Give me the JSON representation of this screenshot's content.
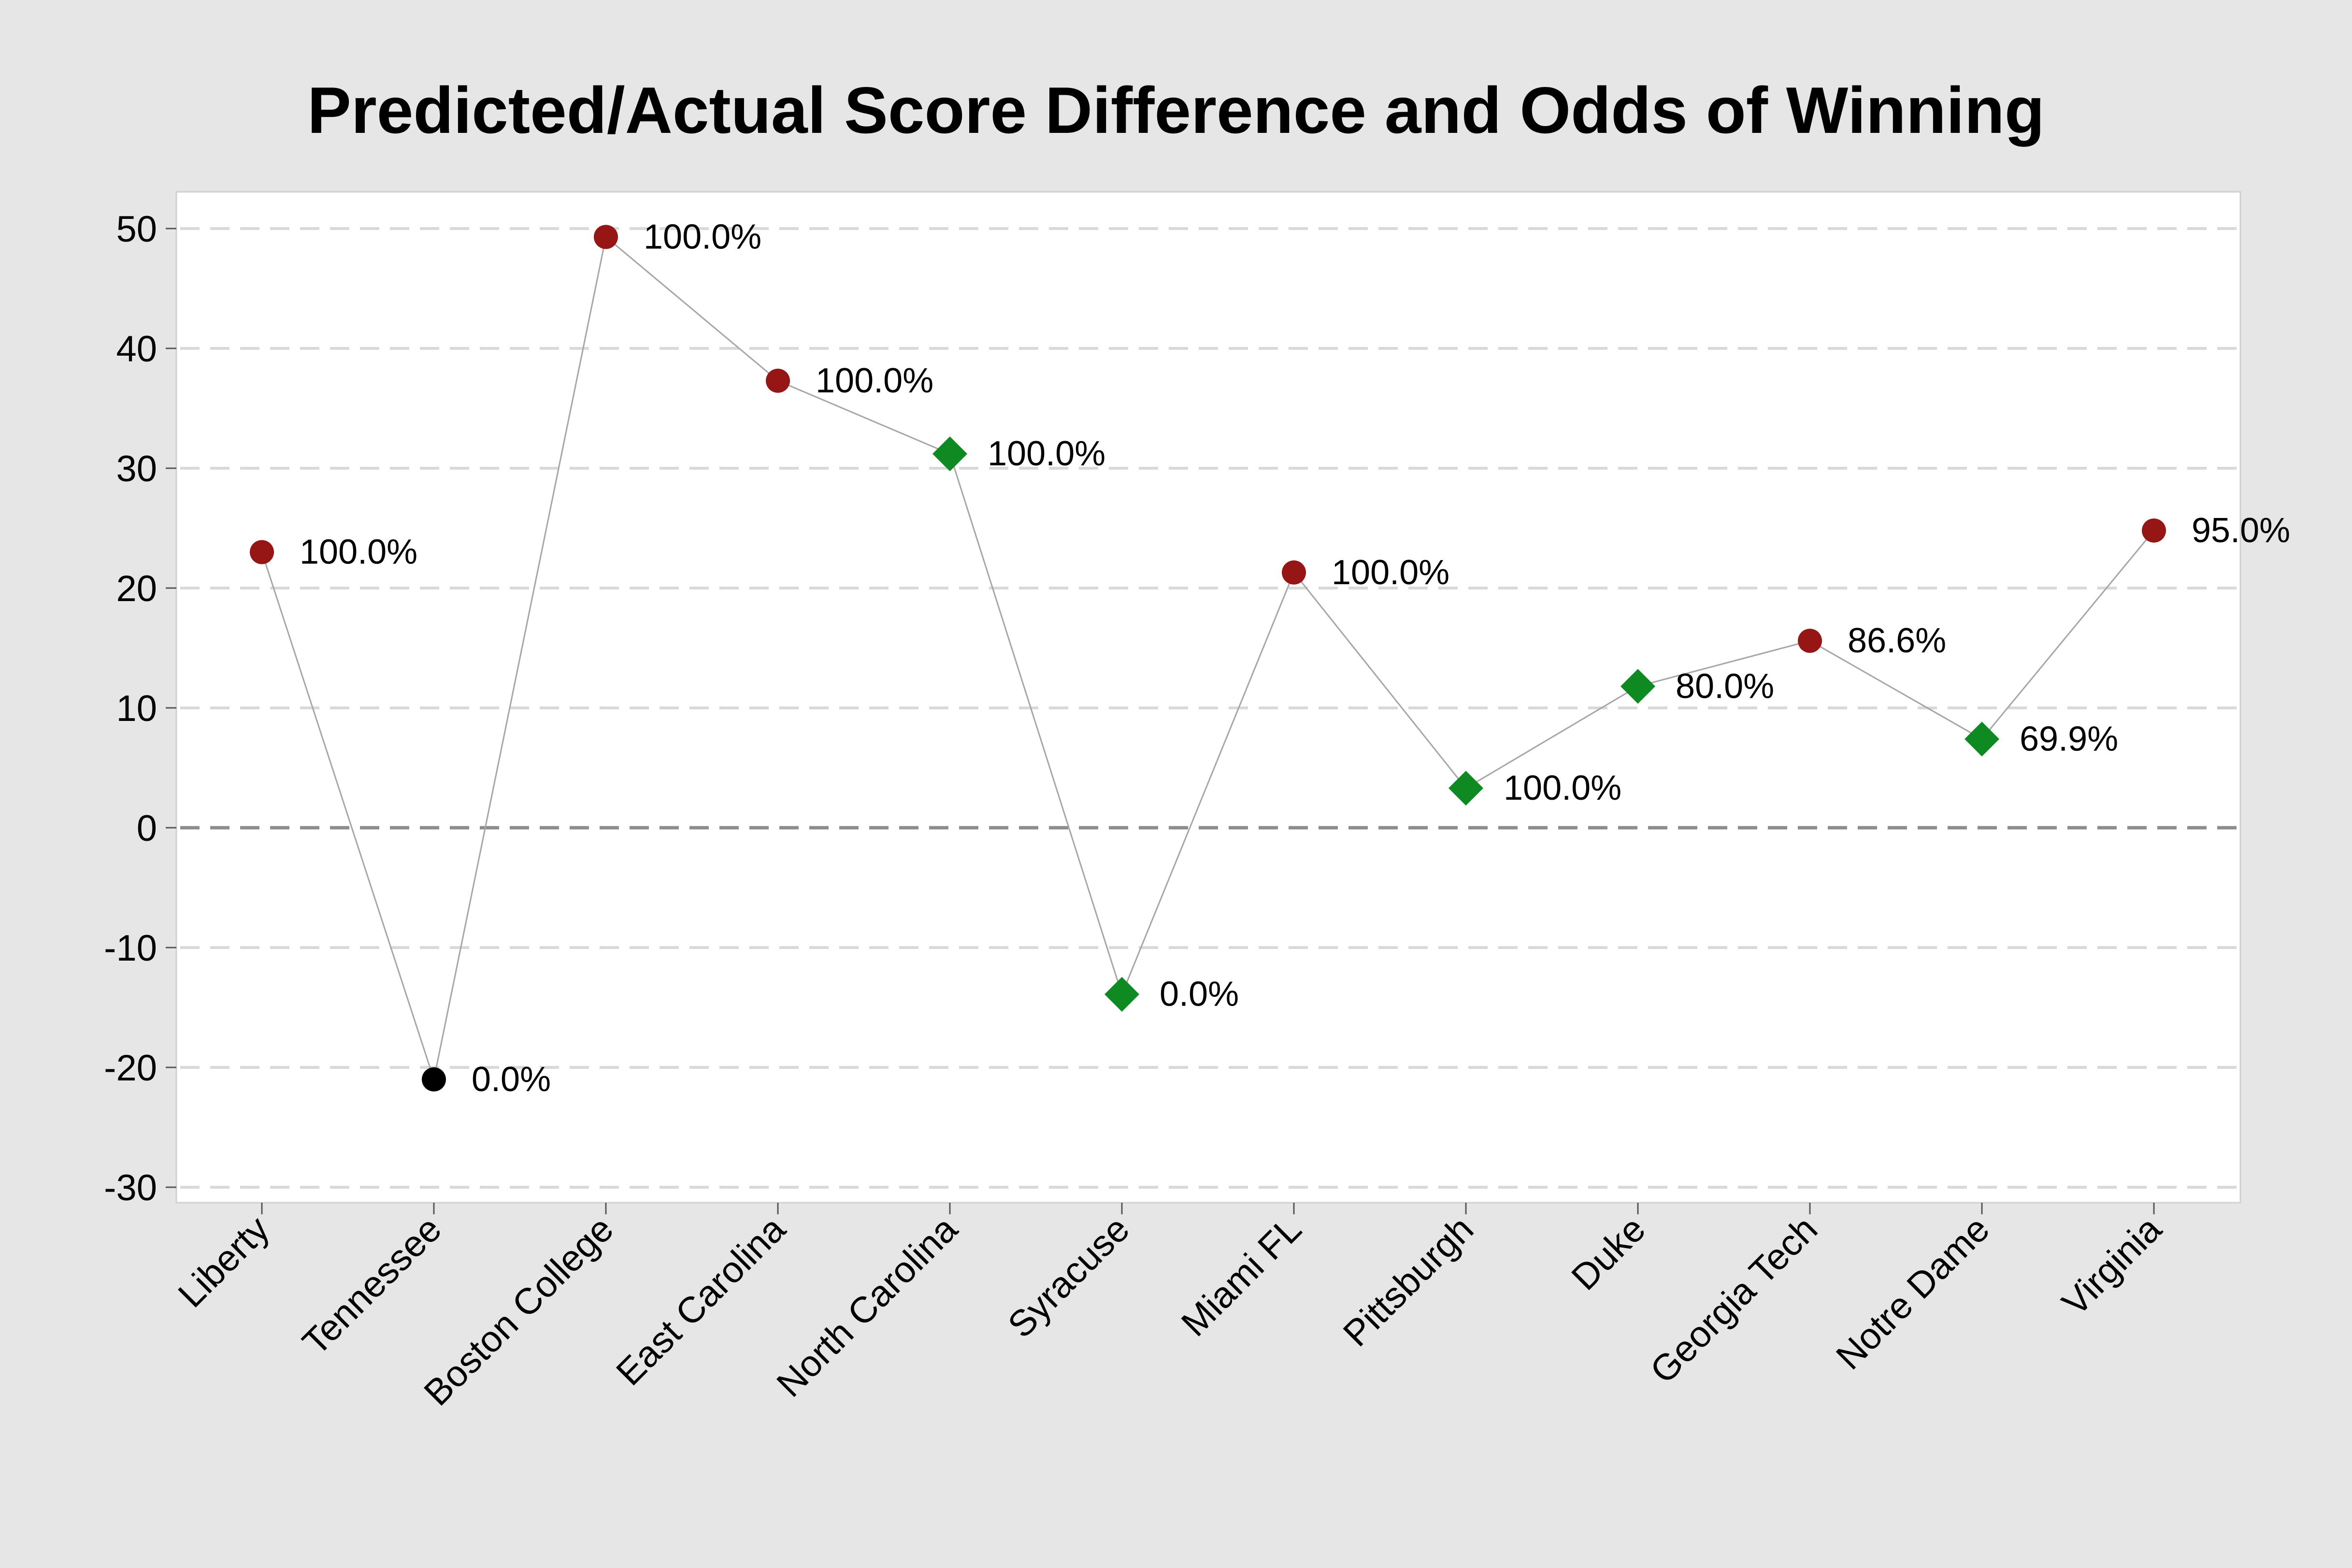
{
  "chart_data": {
    "type": "scatter",
    "title": "Predicted/Actual Score Difference and Odds of Winning",
    "xlabel": "",
    "ylabel": "",
    "ylim": [
      -33,
      53
    ],
    "yticks": [
      50,
      40,
      30,
      20,
      10,
      0,
      -10,
      -20,
      -30
    ],
    "reference_line": 0,
    "grid": true,
    "connected": true,
    "colors": {
      "circle_red": "#961616",
      "circle_black": "#000000",
      "diamond_green": "#0f8a22",
      "line": "#a6a6a6",
      "grid": "#d9d9d9",
      "zero_line": "#8c8c8c"
    },
    "points": [
      {
        "team": "Liberty",
        "y": 23,
        "label": "100.0%",
        "marker": "circle",
        "color": "#961616"
      },
      {
        "team": "Tennessee",
        "y": -21,
        "label": "0.0%",
        "marker": "circle",
        "color": "#000000"
      },
      {
        "team": "Boston College",
        "y": 49.3,
        "label": "100.0%",
        "marker": "circle",
        "color": "#961616"
      },
      {
        "team": "East Carolina",
        "y": 37.3,
        "label": "100.0%",
        "marker": "circle",
        "color": "#961616"
      },
      {
        "team": "North Carolina",
        "y": 31.2,
        "label": "100.0%",
        "marker": "diamond",
        "color": "#0f8a22"
      },
      {
        "team": "Syracuse",
        "y": -13.9,
        "label": "0.0%",
        "marker": "diamond",
        "color": "#0f8a22"
      },
      {
        "team": "Miami FL",
        "y": 21.3,
        "label": "100.0%",
        "marker": "circle",
        "color": "#961616"
      },
      {
        "team": "Pittsburgh",
        "y": 3.3,
        "label": "100.0%",
        "marker": "diamond",
        "color": "#0f8a22"
      },
      {
        "team": "Duke",
        "y": 11.8,
        "label": "80.0%",
        "marker": "diamond",
        "color": "#0f8a22"
      },
      {
        "team": "Georgia Tech",
        "y": 15.6,
        "label": "86.6%",
        "marker": "circle",
        "color": "#961616"
      },
      {
        "team": "Notre Dame",
        "y": 7.4,
        "label": "69.9%",
        "marker": "diamond",
        "color": "#0f8a22"
      },
      {
        "team": "Virginia",
        "y": 24.8,
        "label": "95.0%",
        "marker": "circle",
        "color": "#961616"
      }
    ]
  }
}
